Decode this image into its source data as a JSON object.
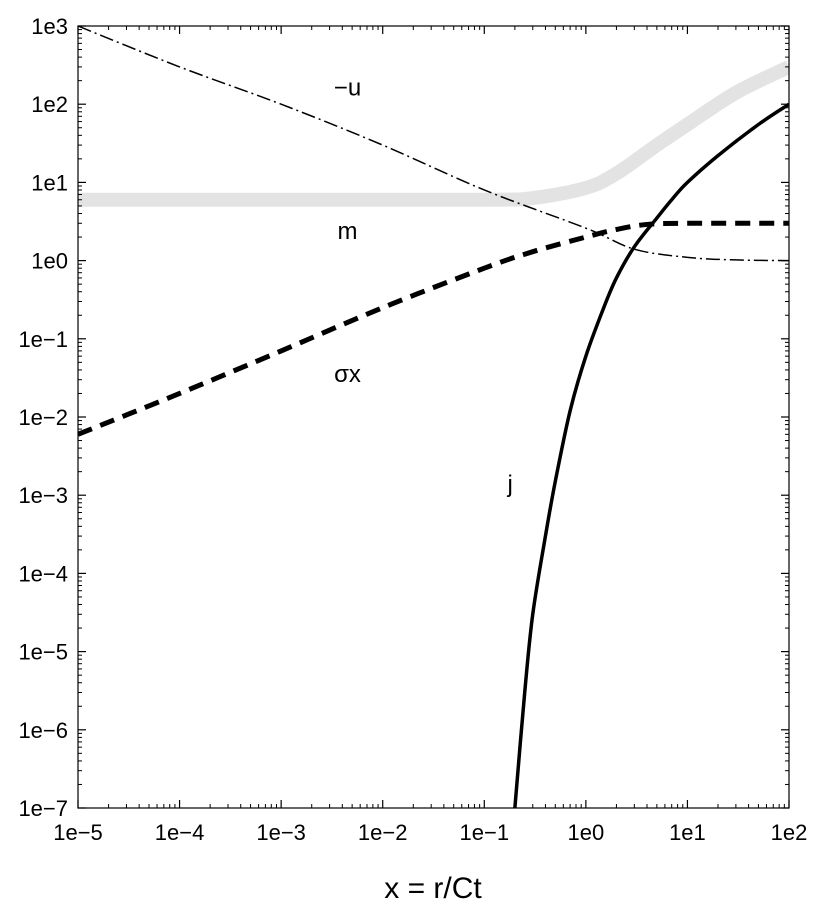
{
  "chart_data": {
    "type": "line",
    "xscale": "log",
    "yscale": "log",
    "xlim": [
      1e-05,
      100
    ],
    "ylim": [
      1e-07,
      1000
    ],
    "xlabel": "x = r/Ct",
    "ylabel": "",
    "grid": false,
    "x_ticks": [
      1e-05,
      0.0001,
      0.001,
      0.01,
      0.1,
      1,
      10,
      100
    ],
    "x_tick_labels": [
      "1e−5",
      "1e−4",
      "1e−3",
      "1e−2",
      "1e−1",
      "1e0",
      "1e1",
      "1e2"
    ],
    "y_ticks": [
      1e-07,
      1e-06,
      1e-05,
      0.0001,
      0.001,
      0.01,
      0.1,
      1,
      10,
      100,
      1000
    ],
    "y_tick_labels": [
      "1e−7",
      "1e−6",
      "1e−5",
      "1e−4",
      "1e−3",
      "1e−2",
      "1e−1",
      "1e0",
      "1e1",
      "1e2",
      "1e3"
    ],
    "series": [
      {
        "name": "m",
        "style": "thick-light-gray",
        "color": "#e3e3e3",
        "x": [
          1e-05,
          0.001,
          0.1,
          0.3,
          1,
          2,
          5,
          10,
          30,
          100
        ],
        "y": [
          6,
          6,
          6,
          6.3,
          8.5,
          13,
          30,
          55,
          140,
          300
        ]
      },
      {
        "name": "−u",
        "style": "dash-dot",
        "color": "#000000",
        "x": [
          1e-05,
          0.0001,
          0.001,
          0.01,
          0.1,
          1,
          3,
          10,
          30,
          100
        ],
        "y": [
          1000,
          300,
          100,
          30,
          8,
          2.6,
          1.4,
          1.1,
          1.02,
          1.0
        ]
      },
      {
        "name": "σx",
        "style": "thick-dashed",
        "color": "#000000",
        "x": [
          1e-05,
          0.0001,
          0.001,
          0.01,
          0.1,
          0.3,
          1,
          2,
          4,
          10,
          100
        ],
        "y": [
          0.006,
          0.02,
          0.07,
          0.25,
          0.8,
          1.3,
          2.0,
          2.5,
          2.9,
          3.0,
          3.0
        ]
      },
      {
        "name": "j",
        "style": "solid",
        "color": "#000000",
        "x": [
          0.2,
          0.25,
          0.3,
          0.4,
          0.5,
          0.7,
          1,
          1.5,
          2,
          3,
          5,
          7,
          10,
          20,
          50,
          100
        ],
        "y": [
          1e-07,
          3e-06,
          3e-05,
          0.0003,
          0.0015,
          0.012,
          0.06,
          0.25,
          0.6,
          1.5,
          3.5,
          6,
          10,
          22,
          55,
          100
        ]
      }
    ],
    "annotations": [
      {
        "text": "−u",
        "x": 0.0045,
        "y": 130
      },
      {
        "text": "m",
        "x": 0.0045,
        "y": 1.9
      },
      {
        "text": "σx",
        "x": 0.0045,
        "y": 0.028
      },
      {
        "text": "j",
        "x": 0.18,
        "y": 0.0011
      }
    ]
  }
}
